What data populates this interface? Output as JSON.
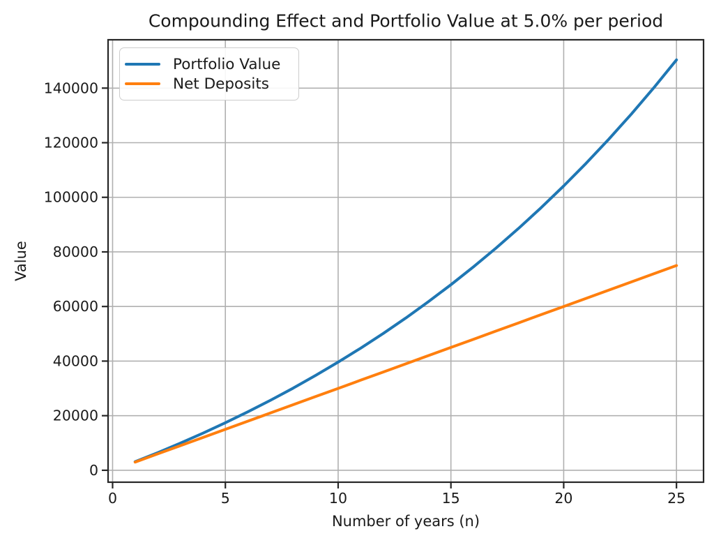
{
  "chart_data": {
    "type": "line",
    "title": "Compounding Effect and Portfolio Value at 5.0% per period",
    "xlabel": "Number of years (n)",
    "ylabel": "Value",
    "x": [
      1,
      2,
      3,
      4,
      5,
      6,
      7,
      8,
      9,
      10,
      11,
      12,
      13,
      14,
      15,
      16,
      17,
      18,
      19,
      20,
      21,
      22,
      23,
      24,
      25
    ],
    "series": [
      {
        "name": "Portfolio Value",
        "color": "#1f77b4",
        "values": [
          3150,
          6457.5,
          9930.38,
          13576.89,
          17405.74,
          21426.03,
          25647.33,
          30079.69,
          34733.68,
          39620.36,
          44751.38,
          50138.95,
          55795.9,
          61735.69,
          67972.48,
          74521.1,
          81397.15,
          88617.01,
          96197.86,
          104157.76,
          112515.64,
          121291.43,
          130506.0,
          140181.3,
          150340.36
        ]
      },
      {
        "name": "Net Deposits",
        "color": "#ff7f0e",
        "values": [
          3000,
          6000,
          9000,
          12000,
          15000,
          18000,
          21000,
          24000,
          27000,
          30000,
          33000,
          36000,
          39000,
          42000,
          45000,
          48000,
          51000,
          54000,
          57000,
          60000,
          63000,
          66000,
          69000,
          72000,
          75000
        ]
      }
    ],
    "xlim": [
      -0.2,
      26.2
    ],
    "ylim": [
      -4367,
      157707
    ],
    "xticks": [
      0,
      5,
      10,
      15,
      20,
      25
    ],
    "yticks": [
      0,
      20000,
      40000,
      60000,
      80000,
      100000,
      120000,
      140000
    ],
    "grid": true,
    "legend_position": "upper left",
    "grid_color": "#b0b0b0",
    "axis_color": "#262626",
    "text_color": "#1a1a1a",
    "background_color": "#ffffff"
  }
}
